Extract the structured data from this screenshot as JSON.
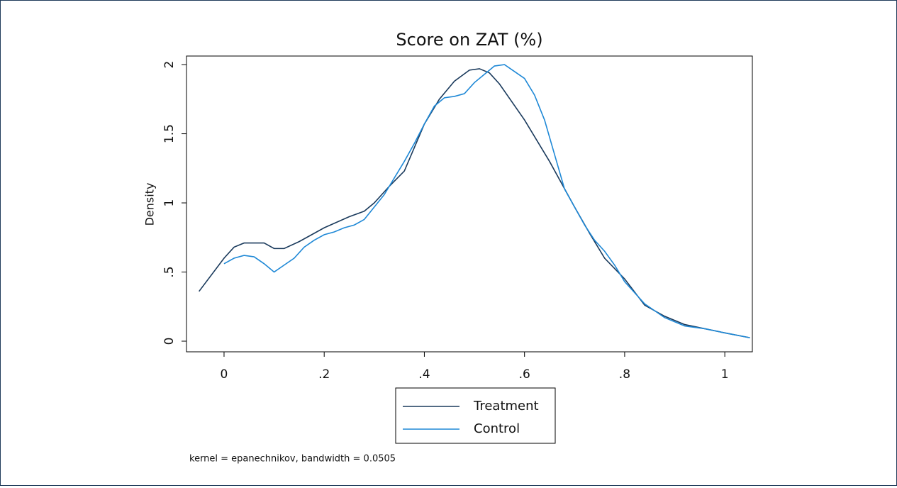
{
  "chart_data": {
    "type": "line",
    "title": "Score on ZAT (%)",
    "y_label": "Density",
    "note": "kernel = epanechnikov, bandwidth = 0.0505",
    "xlim": [
      -0.075,
      1.055
    ],
    "ylim": [
      -0.077,
      2.062
    ],
    "xticks": [
      0,
      {
        "value": 0.2,
        "label": ".2"
      },
      {
        "value": 0.4,
        "label": ".4"
      },
      {
        "value": 0.6,
        "label": ".6"
      },
      {
        "value": 0.8,
        "label": ".8"
      },
      1
    ],
    "yticks": [
      0,
      {
        "value": 0.5,
        "label": ".5"
      },
      1,
      1.5,
      2
    ],
    "legend": "bottom",
    "series": [
      {
        "name": "Treatment",
        "color": "#1a3a5c",
        "x": [
          -0.05,
          0,
          0.02,
          0.04,
          0.08,
          0.1,
          0.12,
          0.15,
          0.2,
          0.25,
          0.28,
          0.3,
          0.33,
          0.36,
          0.38,
          0.4,
          0.43,
          0.46,
          0.49,
          0.51,
          0.53,
          0.55,
          0.6,
          0.65,
          0.7,
          0.73,
          0.76,
          0.8,
          0.84,
          0.88,
          0.92,
          0.96,
          1.0,
          1.05
        ],
        "values": [
          0.36,
          0.6,
          0.68,
          0.71,
          0.71,
          0.67,
          0.67,
          0.72,
          0.82,
          0.9,
          0.94,
          1.0,
          1.12,
          1.23,
          1.4,
          1.57,
          1.75,
          1.88,
          1.96,
          1.97,
          1.94,
          1.86,
          1.6,
          1.3,
          0.97,
          0.78,
          0.6,
          0.45,
          0.26,
          0.18,
          0.12,
          0.09,
          0.06,
          0.025
        ]
      },
      {
        "name": "Control",
        "color": "#1e88d6",
        "x": [
          0,
          0.02,
          0.04,
          0.06,
          0.08,
          0.1,
          0.12,
          0.14,
          0.16,
          0.18,
          0.2,
          0.22,
          0.24,
          0.26,
          0.28,
          0.3,
          0.32,
          0.34,
          0.36,
          0.38,
          0.4,
          0.42,
          0.44,
          0.46,
          0.48,
          0.5,
          0.52,
          0.54,
          0.56,
          0.58,
          0.6,
          0.62,
          0.64,
          0.66,
          0.68,
          0.7,
          0.72,
          0.74,
          0.76,
          0.78,
          0.8,
          0.84,
          0.88,
          0.92,
          0.96,
          1.0,
          1.05
        ],
        "values": [
          0.56,
          0.6,
          0.62,
          0.61,
          0.56,
          0.5,
          0.55,
          0.6,
          0.68,
          0.73,
          0.77,
          0.79,
          0.82,
          0.84,
          0.88,
          0.97,
          1.06,
          1.18,
          1.3,
          1.43,
          1.57,
          1.7,
          1.76,
          1.77,
          1.79,
          1.87,
          1.93,
          1.99,
          2.0,
          1.95,
          1.9,
          1.78,
          1.6,
          1.35,
          1.1,
          0.97,
          0.84,
          0.73,
          0.65,
          0.55,
          0.43,
          0.27,
          0.17,
          0.11,
          0.09,
          0.06,
          0.025
        ]
      }
    ]
  }
}
